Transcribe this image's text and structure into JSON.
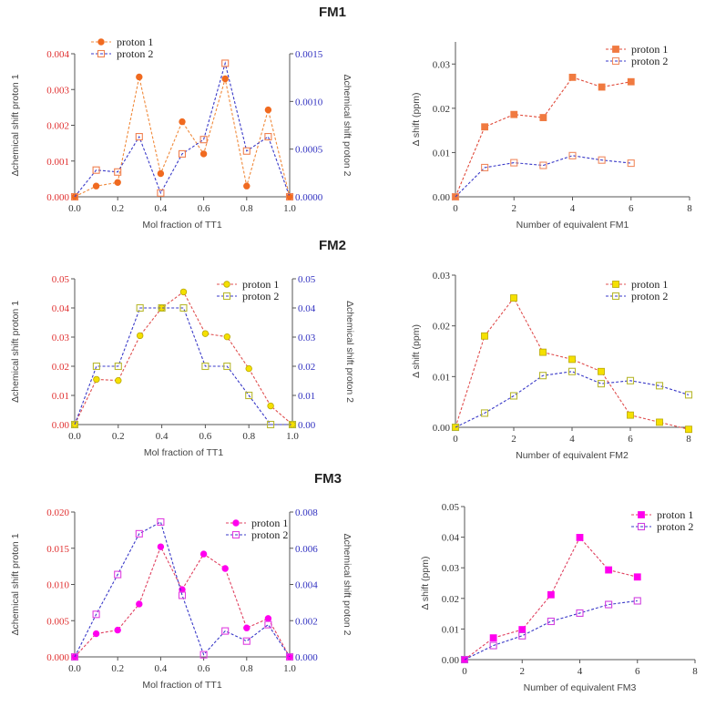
{
  "chart_data": [
    {
      "type": "line",
      "title": "FM1",
      "xlabel": "Mol fraction of TT1",
      "ylabel": "Δchemical shift proton 1",
      "y2label": "Δchemical shift proton 2",
      "xlim": [
        0,
        1
      ],
      "xticks": [
        "0.0",
        "0.2",
        "0.4",
        "0.6",
        "0.8",
        "1.0"
      ],
      "ylim": [
        0,
        0.004
      ],
      "yticks": [
        "0.000",
        "0.001",
        "0.002",
        "0.003",
        "0.004"
      ],
      "y2lim": [
        0,
        0.0015
      ],
      "y2ticks": [
        "0.0000",
        "0.0005",
        "0.0010",
        "0.0015"
      ],
      "legend_position": "top-left",
      "x": [
        0,
        0.1,
        0.2,
        0.3,
        0.4,
        0.5,
        0.6,
        0.7,
        0.8,
        0.9,
        1.0
      ],
      "series": [
        {
          "name": "proton 1",
          "axis": "left",
          "marker": "filled-circle",
          "line_color": "#f08a3c",
          "marker_color": "#f06a20",
          "values": [
            0,
            0.0003,
            0.0004,
            0.00335,
            0.00065,
            0.0021,
            0.0012,
            0.0033,
            0.0003,
            0.00243,
            0
          ]
        },
        {
          "name": "proton 2",
          "axis": "right",
          "marker": "open-square",
          "line_color": "#3a3ac8",
          "marker_color": "#f08050",
          "values": [
            0,
            0.00028,
            0.00026,
            0.00063,
            4e-05,
            0.00045,
            0.0006,
            0.0014,
            0.00048,
            0.00063,
            0
          ]
        }
      ]
    },
    {
      "type": "line",
      "title": "",
      "xlabel": "Number of equivalent FM1",
      "ylabel": "Δ shift (ppm)",
      "xlim": [
        0,
        8
      ],
      "xticks": [
        "0",
        "2",
        "4",
        "6",
        "8"
      ],
      "ylim": [
        0,
        0.035
      ],
      "yticks": [
        "0.00",
        "0.01",
        "0.02",
        "0.03"
      ],
      "legend_position": "top-right",
      "x": [
        0,
        1,
        2,
        3,
        4,
        5,
        6
      ],
      "series": [
        {
          "name": "proton 1",
          "marker": "filled-square",
          "line_color": "#e04a3a",
          "marker_color": "#f07a40",
          "values": [
            0,
            0.0158,
            0.0186,
            0.0179,
            0.027,
            0.0248,
            0.026
          ]
        },
        {
          "name": "proton 2",
          "marker": "open-square",
          "line_color": "#3a3ac8",
          "marker_color": "#f08a60",
          "values": [
            0,
            0.0066,
            0.0077,
            0.0071,
            0.0093,
            0.0083,
            0.0076
          ]
        }
      ]
    },
    {
      "type": "line",
      "title": "FM2",
      "xlabel": "Mol fraction of TT1",
      "ylabel": "Δchemical shift proton 1",
      "y2label": "Δchemical shift proton 2",
      "xlim": [
        0,
        1
      ],
      "xticks": [
        "0.0",
        "0.2",
        "0.4",
        "0.6",
        "0.8",
        "1.0"
      ],
      "ylim": [
        0,
        0.05
      ],
      "yticks": [
        "0.00",
        "0.01",
        "0.02",
        "0.03",
        "0.04",
        "0.05"
      ],
      "y2lim": [
        0,
        0.05
      ],
      "y2ticks": [
        "0.00",
        "0.01",
        "0.02",
        "0.03",
        "0.04",
        "0.05"
      ],
      "legend_position": "top-right",
      "x": [
        0,
        0.1,
        0.2,
        0.3,
        0.4,
        0.5,
        0.6,
        0.7,
        0.8,
        0.9,
        1.0
      ],
      "series": [
        {
          "name": "proton 1",
          "axis": "left",
          "marker": "filled-circle",
          "line_color": "#e05050",
          "marker_color": "#f5e000",
          "values": [
            0,
            0.0155,
            0.0151,
            0.0305,
            0.04,
            0.0455,
            0.0312,
            0.0301,
            0.0192,
            0.0064,
            0
          ]
        },
        {
          "name": "proton 2",
          "axis": "right",
          "marker": "open-square",
          "line_color": "#3a3ac8",
          "marker_color": "#b8b830",
          "values": [
            0,
            0.02,
            0.02,
            0.04,
            0.04,
            0.04,
            0.02,
            0.02,
            0.01,
            0,
            0
          ]
        }
      ]
    },
    {
      "type": "line",
      "title": "",
      "xlabel": "Number of equivalent FM2",
      "ylabel": "Δ shift (ppm)",
      "xlim": [
        0,
        8
      ],
      "xticks": [
        "0",
        "2",
        "4",
        "6",
        "8"
      ],
      "ylim": [
        0,
        0.03
      ],
      "yticks": [
        "0.00",
        "0.01",
        "0.02",
        "0.03"
      ],
      "legend_position": "top-right",
      "x": [
        0,
        1,
        2,
        3,
        4,
        5,
        6,
        7,
        8
      ],
      "series": [
        {
          "name": "proton 1",
          "marker": "filled-square",
          "line_color": "#e05050",
          "marker_color": "#f5e000",
          "values": [
            0,
            0.018,
            0.0255,
            0.0148,
            0.0134,
            0.011,
            0.0024,
            0.001,
            -0.0004
          ]
        },
        {
          "name": "proton 2",
          "marker": "open-square",
          "line_color": "#3a3ac8",
          "marker_color": "#b8b830",
          "values": [
            0,
            0.0028,
            0.0062,
            0.0102,
            0.011,
            0.0086,
            0.0092,
            0.0082,
            0.0064
          ]
        }
      ]
    },
    {
      "type": "line",
      "title": "FM3",
      "xlabel": "Mol fraction of TT1",
      "ylabel": "Δchemical shift proton 1",
      "y2label": "Δchemical shift proton 2",
      "xlim": [
        0,
        1
      ],
      "xticks": [
        "0.0",
        "0.2",
        "0.4",
        "0.6",
        "0.8",
        "1.0"
      ],
      "ylim": [
        0,
        0.02
      ],
      "yticks": [
        "0.000",
        "0.005",
        "0.010",
        "0.015",
        "0.020"
      ],
      "y2lim": [
        0,
        0.008
      ],
      "y2ticks": [
        "0.000",
        "0.002",
        "0.004",
        "0.006",
        "0.008"
      ],
      "legend_position": "top-right",
      "x": [
        0,
        0.1,
        0.2,
        0.3,
        0.4,
        0.5,
        0.6,
        0.7,
        0.8,
        0.9,
        1.0
      ],
      "series": [
        {
          "name": "proton 1",
          "axis": "left",
          "marker": "filled-circle",
          "line_color": "#e04060",
          "marker_color": "#ff00ee",
          "values": [
            0,
            0.0032,
            0.0037,
            0.0073,
            0.0152,
            0.0093,
            0.0142,
            0.0122,
            0.004,
            0.0053,
            0
          ]
        },
        {
          "name": "proton 2",
          "axis": "right",
          "marker": "open-square",
          "line_color": "#3a3ac8",
          "marker_color": "#e040e0",
          "values": [
            0,
            0.00235,
            0.00455,
            0.0068,
            0.00745,
            0.0034,
            0.00012,
            0.00143,
            0.00087,
            0.00178,
            0
          ]
        }
      ]
    },
    {
      "type": "line",
      "title": "",
      "xlabel": "Number of equivalent FM3",
      "ylabel": "Δ shift (ppm)",
      "xlim": [
        0,
        8
      ],
      "xticks": [
        "0",
        "2",
        "4",
        "6",
        "8"
      ],
      "ylim": [
        0,
        0.05
      ],
      "yticks": [
        "0.00",
        "0.01",
        "0.02",
        "0.03",
        "0.04",
        "0.05"
      ],
      "legend_position": "top-right",
      "x": [
        0,
        1,
        2,
        3,
        4,
        5,
        6
      ],
      "series": [
        {
          "name": "proton 1",
          "marker": "filled-square",
          "line_color": "#e04060",
          "marker_color": "#ff00ee",
          "values": [
            0,
            0.0071,
            0.0098,
            0.0212,
            0.0399,
            0.0293,
            0.027
          ]
        },
        {
          "name": "proton 2",
          "marker": "open-square",
          "line_color": "#3a3ac8",
          "marker_color": "#d040e0",
          "values": [
            0,
            0.0046,
            0.0078,
            0.0125,
            0.0152,
            0.018,
            0.0192
          ]
        }
      ]
    }
  ],
  "colors": {
    "left_axis_ticks": "#e03030",
    "right_axis_ticks": "#3030c0",
    "axis": "#555555"
  }
}
